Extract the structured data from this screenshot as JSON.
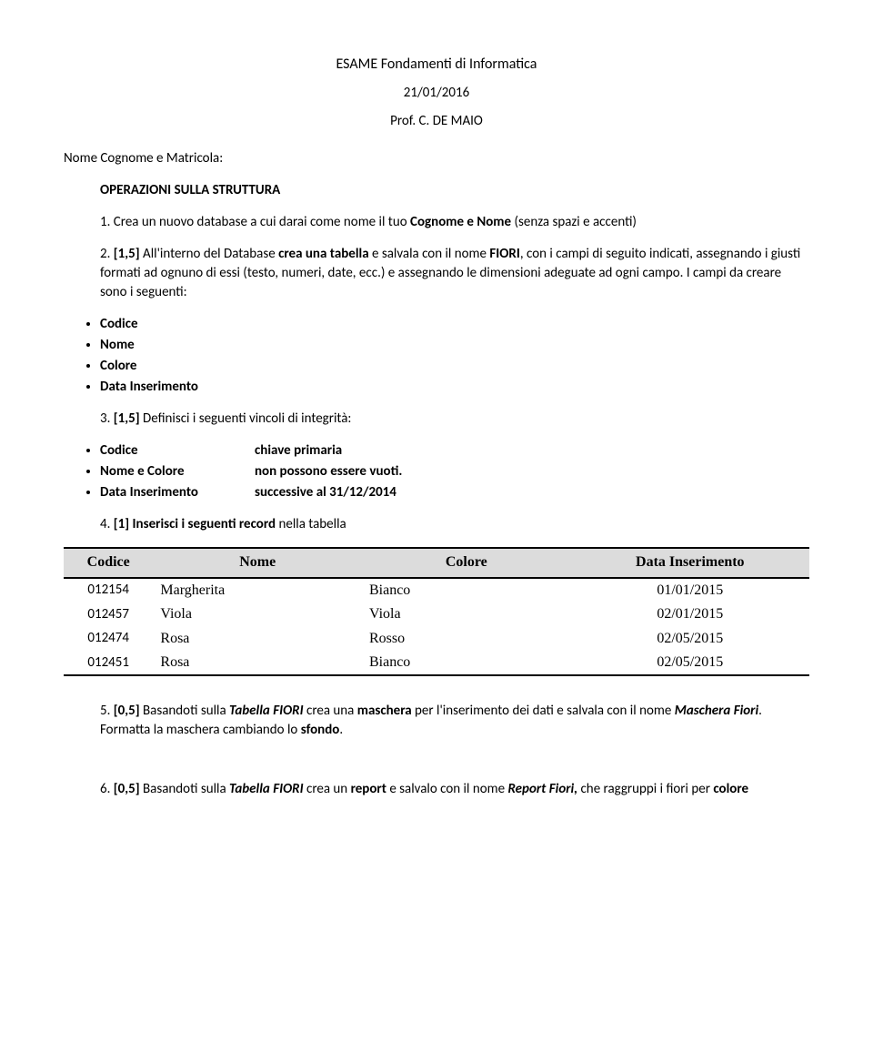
{
  "header": {
    "title": "ESAME Fondamenti di Informatica",
    "date": "21/01/2016",
    "prof": "Prof. C. DE MAIO"
  },
  "intro": {
    "name_line": "Nome Cognome e Matricola:",
    "ops_heading": "OPERAZIONI SULLA STRUTTURA"
  },
  "q1": {
    "num": "1.",
    "text_a": "Crea un nuovo database a cui darai come nome il tuo ",
    "bold_a": "Cognome e Nome ",
    "text_b": "(senza spazi e accenti)"
  },
  "q2": {
    "num": "2.",
    "pts": "[1,5] ",
    "text_a": "All'interno del Database ",
    "bold_a": "crea una tabella",
    "text_b": " e salvala con il nome ",
    "bold_b": "FIORI",
    "text_c": ", con i campi di seguito indicati, assegnando i giusti formati ad ognuno di essi (testo, numeri, date, ecc.) e assegnando le dimensioni adeguate ad ogni campo. I campi da creare sono i seguenti:",
    "fields": [
      "Codice",
      "Nome",
      "Colore",
      "Data Inserimento"
    ]
  },
  "q3": {
    "num": "3.",
    "pts": "[1,5] ",
    "text_a": "Definisci i seguenti vincoli di integrità:",
    "defs": [
      {
        "label": "Codice",
        "value": "chiave primaria"
      },
      {
        "label": "Nome e Colore",
        "value": "non possono essere vuoti."
      },
      {
        "label": "Data Inserimento",
        "value": "successive al 31/12/2014"
      }
    ]
  },
  "q4": {
    "num": "4.",
    "pts": "[1] ",
    "bold_a": "Inserisci i seguenti record ",
    "text_a": "nella tabella",
    "table": {
      "columns": [
        "Codice",
        "Nome",
        "Colore",
        "Data Inserimento"
      ],
      "rows": [
        [
          "012154",
          "Margherita",
          "Bianco",
          "01/01/2015"
        ],
        [
          "012457",
          "Viola",
          "Viola",
          "02/01/2015"
        ],
        [
          "012474",
          "Rosa",
          "Rosso",
          "02/05/2015"
        ],
        [
          "012451",
          "Rosa",
          "Bianco",
          "02/05/2015"
        ]
      ],
      "header_bg": "#dcdcdc"
    }
  },
  "q5": {
    "num": "5.",
    "pts": "[0,5] ",
    "text_a": "Basandoti sulla ",
    "ib_a": "Tabella FIORI",
    "text_b": " crea una ",
    "bold_a": "maschera",
    "text_c": " per l'inserimento dei dati e salvala con il nome ",
    "ib_b": "Maschera Fiori",
    "text_d": ".  Formatta la maschera cambiando lo ",
    "bold_b": "sfondo",
    "text_e": "."
  },
  "q6": {
    "num": "6.",
    "pts": "[0,5] ",
    "text_a": "Basandoti sulla ",
    "ib_a": "Tabella FIORI",
    "text_b": " crea un ",
    "bold_a": "report",
    "text_c": " e salvalo con il nome ",
    "ib_b": "Report Fiori,",
    "text_d": "  che raggruppi i fiori per ",
    "bold_b": "colore"
  }
}
